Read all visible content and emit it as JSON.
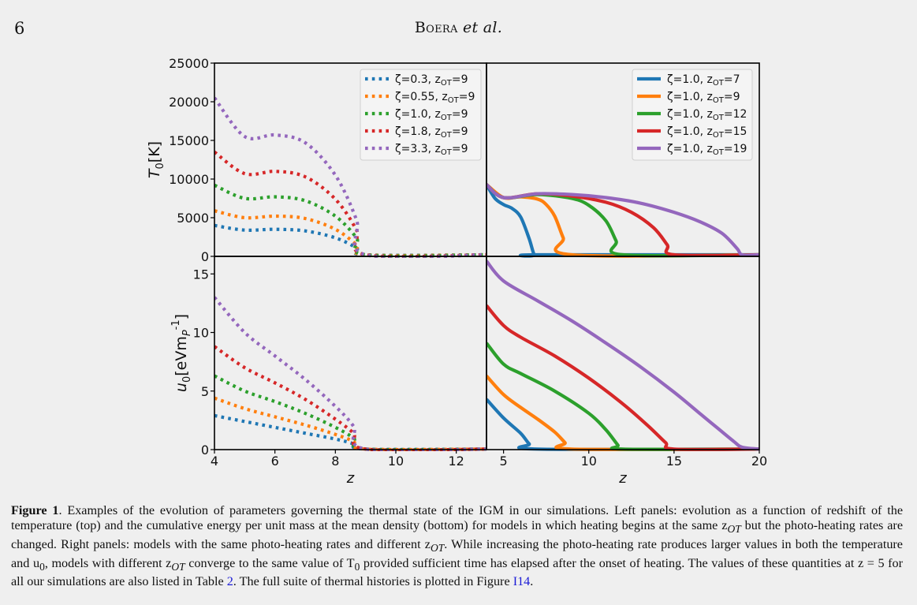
{
  "header": {
    "page_number": "6",
    "author": "Boera",
    "etal": "et al."
  },
  "chart_data": [
    {
      "panel": "top-left",
      "type": "line",
      "line_style": "dotted",
      "ylabel": "T0[K]",
      "ylim": [
        0,
        25000
      ],
      "yticks": [
        0,
        5000,
        10000,
        15000,
        20000,
        25000
      ],
      "xlim": [
        4,
        13
      ],
      "grid": false,
      "legend_position": "top-right",
      "series": [
        {
          "name": "ζ=0.3,  zOT=9",
          "color": "#1f77b4",
          "x": [
            4,
            5,
            6,
            7,
            8,
            8.7,
            9,
            13
          ],
          "y": [
            4000,
            3400,
            3500,
            3300,
            2400,
            1100,
            200,
            200
          ]
        },
        {
          "name": "ζ=0.55, zOT=9",
          "color": "#ff7f0e",
          "x": [
            4,
            5,
            6,
            7,
            8,
            8.7,
            9,
            13
          ],
          "y": [
            5900,
            5000,
            5200,
            4900,
            3500,
            1500,
            200,
            200
          ]
        },
        {
          "name": "ζ=1.0,  zOT=9",
          "color": "#2ca02c",
          "x": [
            4,
            5,
            6,
            7,
            8,
            8.7,
            9,
            13
          ],
          "y": [
            9200,
            7500,
            7700,
            7200,
            5200,
            2400,
            200,
            200
          ]
        },
        {
          "name": "ζ=1.8,  zOT=9",
          "color": "#d62728",
          "x": [
            4,
            5,
            6,
            7,
            8,
            8.7,
            9,
            13
          ],
          "y": [
            13500,
            10700,
            11000,
            10300,
            7400,
            3400,
            200,
            200
          ]
        },
        {
          "name": "ζ=3.3,  zOT=9",
          "color": "#9467bd",
          "x": [
            4,
            5,
            6,
            7,
            8,
            8.7,
            9,
            13
          ],
          "y": [
            20500,
            15500,
            15700,
            14700,
            10500,
            4700,
            200,
            200
          ]
        }
      ]
    },
    {
      "panel": "top-right",
      "type": "line",
      "line_style": "solid",
      "ylim": [
        0,
        25000
      ],
      "xlim": [
        4,
        20
      ],
      "grid": false,
      "legend_position": "top-right",
      "series": [
        {
          "name": "ζ=1.0, zOT=7",
          "color": "#1f77b4",
          "x": [
            4,
            4.5,
            5,
            5.5,
            6,
            6.5,
            6.8,
            7,
            20
          ],
          "y": [
            9300,
            7500,
            6700,
            6200,
            5100,
            2300,
            200,
            200,
            200
          ]
        },
        {
          "name": "ζ=1.0, zOT=9",
          "color": "#ff7f0e",
          "x": [
            4,
            5,
            6,
            7,
            7.5,
            8,
            8.5,
            9,
            20
          ],
          "y": [
            9300,
            7600,
            7700,
            7400,
            6700,
            5200,
            2400,
            200,
            200
          ]
        },
        {
          "name": "ζ=1.0, zOT=12",
          "color": "#2ca02c",
          "x": [
            4,
            5,
            7,
            9,
            10,
            11,
            11.6,
            12,
            20
          ],
          "y": [
            9300,
            7600,
            8000,
            7500,
            6600,
            4600,
            2000,
            200,
            200
          ]
        },
        {
          "name": "ζ=1.0, zOT=15",
          "color": "#d62728",
          "x": [
            4,
            5,
            7,
            9,
            11,
            12.5,
            13.8,
            14.6,
            15,
            20
          ],
          "y": [
            9300,
            7600,
            8100,
            7800,
            7000,
            5700,
            3700,
            1500,
            200,
            200
          ]
        },
        {
          "name": "ζ=1.0, zOT=19",
          "color": "#9467bd",
          "x": [
            4,
            5,
            7,
            9,
            11,
            13,
            15,
            16.5,
            17.8,
            18.7,
            19,
            20
          ],
          "y": [
            9300,
            7600,
            8100,
            8000,
            7600,
            6900,
            5700,
            4500,
            3000,
            1000,
            200,
            200
          ]
        }
      ]
    },
    {
      "panel": "bottom-left",
      "type": "line",
      "line_style": "dotted",
      "ylabel": "u0[eVmP-1]",
      "xlabel": "z",
      "ylim": [
        0,
        16.5
      ],
      "yticks": [
        0,
        5,
        10,
        15
      ],
      "xlim": [
        4,
        13
      ],
      "xticks": [
        4,
        6,
        8,
        10,
        12
      ],
      "grid": false,
      "series": [
        {
          "name": "ζ=0.3",
          "color": "#1f77b4",
          "x": [
            4,
            5,
            6,
            7,
            8,
            8.6,
            9,
            13
          ],
          "y": [
            2.9,
            2.4,
            1.9,
            1.4,
            0.9,
            0.5,
            0.05,
            0.05
          ]
        },
        {
          "name": "ζ=0.55",
          "color": "#ff7f0e",
          "x": [
            4,
            5,
            6,
            7,
            8,
            8.6,
            9,
            13
          ],
          "y": [
            4.4,
            3.5,
            2.8,
            2.1,
            1.3,
            0.7,
            0.05,
            0.05
          ]
        },
        {
          "name": "ζ=1.0",
          "color": "#2ca02c",
          "x": [
            4,
            5,
            6,
            7,
            8,
            8.6,
            9,
            13
          ],
          "y": [
            6.3,
            5.0,
            4.1,
            3.1,
            1.9,
            1.0,
            0.05,
            0.05
          ]
        },
        {
          "name": "ζ=1.8",
          "color": "#d62728",
          "x": [
            4,
            5,
            6,
            7,
            8,
            8.6,
            9,
            13
          ],
          "y": [
            8.8,
            7.0,
            5.7,
            4.3,
            2.6,
            1.4,
            0.05,
            0.05
          ]
        },
        {
          "name": "ζ=3.3",
          "color": "#9467bd",
          "x": [
            4,
            5,
            6,
            7,
            8,
            8.6,
            9,
            13
          ],
          "y": [
            13.0,
            10.0,
            8.0,
            6.0,
            3.7,
            2.0,
            0.05,
            0.05
          ]
        }
      ]
    },
    {
      "panel": "bottom-right",
      "type": "line",
      "line_style": "solid",
      "xlabel": "z",
      "ylim": [
        0,
        16.5
      ],
      "xlim": [
        4,
        20
      ],
      "xticks": [
        5,
        10,
        15,
        20
      ],
      "grid": false,
      "series": [
        {
          "name": "zOT=7",
          "color": "#1f77b4",
          "x": [
            4,
            5,
            6,
            6.5,
            7,
            20
          ],
          "y": [
            4.3,
            2.7,
            1.4,
            0.5,
            0.05,
            0.05
          ]
        },
        {
          "name": "zOT=9",
          "color": "#ff7f0e",
          "x": [
            4,
            5,
            6,
            7,
            8,
            8.6,
            9,
            20
          ],
          "y": [
            6.3,
            4.7,
            3.6,
            2.6,
            1.5,
            0.6,
            0.05,
            0.05
          ]
        },
        {
          "name": "zOT=12",
          "color": "#2ca02c",
          "x": [
            4,
            5,
            6,
            8,
            10,
            11,
            11.7,
            12,
            20
          ],
          "y": [
            9.1,
            7.3,
            6.5,
            5.0,
            3.1,
            1.7,
            0.4,
            0.05,
            0.05
          ]
        },
        {
          "name": "zOT=15",
          "color": "#d62728",
          "x": [
            4,
            5,
            6,
            8,
            10,
            12,
            13.5,
            14.5,
            15,
            20
          ],
          "y": [
            12.3,
            10.6,
            9.6,
            8.0,
            6.1,
            3.9,
            2.0,
            0.6,
            0.05,
            0.05
          ]
        },
        {
          "name": "zOT=19",
          "color": "#9467bd",
          "x": [
            4,
            5,
            7,
            9,
            11,
            13,
            15,
            16.5,
            17.5,
            18.5,
            19,
            20
          ],
          "y": [
            16.1,
            14.4,
            12.7,
            11.0,
            9.1,
            7.1,
            4.9,
            3.1,
            1.9,
            0.7,
            0.2,
            0.05
          ]
        }
      ]
    }
  ],
  "caption": {
    "label": "Figure 1",
    "text1": ". Examples of the evolution of parameters governing the thermal state of the IGM in our simulations. Left panels: evolution as a function of redshift of the temperature (top) and the cumulative energy per unit mass at the mean density (bottom) for models in which heating begins at the same z",
    "text2": " but the photo-heating rates are changed. Right panels: models with the same photo-heating rates and different z",
    "text3": ". While increasing the photo-heating rate produces larger values in both the temperature and u",
    "text4": ", models with different z",
    "text5": " converge to the same value of T",
    "text6": " provided sufficient time has elapsed after the onset of heating. The values of these quantities at z = 5 for all our simulations are also listed in Table ",
    "table_ref": "2",
    "text7": ". The full suite of thermal histories is plotted in Figure ",
    "figure_ref": "I14",
    "text8": ".",
    "sub_ot": "OT",
    "sub_0": "0"
  }
}
